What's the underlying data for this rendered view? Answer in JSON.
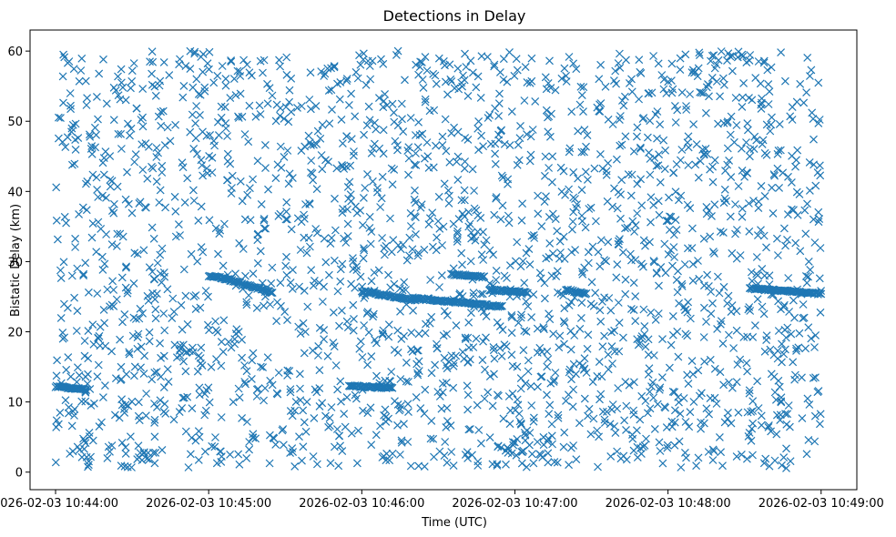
{
  "chart_data": {
    "type": "scatter",
    "title": "Detections in Delay",
    "xlabel": "Time (UTC)",
    "ylabel": "Bistatic Delay (km)",
    "marker": "x",
    "marker_color": "#1f77b4",
    "grid": false,
    "x_axis_kind": "datetime",
    "xlim": [
      "2026-02-03 10:43:50",
      "2026-02-03 10:49:14"
    ],
    "ylim": [
      -2.5,
      63
    ],
    "xticks": [
      "2026-02-03 10:44:00",
      "2026-02-03 10:45:00",
      "2026-02-03 10:46:00",
      "2026-02-03 10:47:00",
      "2026-02-03 10:48:00",
      "2026-02-03 10:49:00"
    ],
    "yticks": [
      0,
      10,
      20,
      30,
      40,
      50,
      60
    ],
    "clutter_region": {
      "x_range": [
        "2026-02-03 10:44:00",
        "2026-02-03 10:49:00"
      ],
      "y_range": [
        0.5,
        60
      ],
      "approx_count": 2400
    },
    "tracks": [
      {
        "x_start": "2026-02-03 10:44:00",
        "x_end": "2026-02-03 10:44:12",
        "y_start": 12.2,
        "y_end": 11.8
      },
      {
        "x_start": "2026-02-03 10:45:00",
        "x_end": "2026-02-03 10:45:08",
        "y_start": 28.0,
        "y_end": 27.5
      },
      {
        "x_start": "2026-02-03 10:45:08",
        "x_end": "2026-02-03 10:45:25",
        "y_start": 27.4,
        "y_end": 25.6
      },
      {
        "x_start": "2026-02-03 10:46:00",
        "x_end": "2026-02-03 10:46:20",
        "y_start": 25.8,
        "y_end": 24.5
      },
      {
        "x_start": "2026-02-03 10:46:20",
        "x_end": "2026-02-03 10:46:55",
        "y_start": 24.8,
        "y_end": 23.6
      },
      {
        "x_start": "2026-02-03 10:45:55",
        "x_end": "2026-02-03 10:46:12",
        "y_start": 12.3,
        "y_end": 12.0
      },
      {
        "x_start": "2026-02-03 10:46:35",
        "x_end": "2026-02-03 10:46:48",
        "y_start": 28.2,
        "y_end": 27.8
      },
      {
        "x_start": "2026-02-03 10:46:50",
        "x_end": "2026-02-03 10:47:05",
        "y_start": 26.0,
        "y_end": 25.6
      },
      {
        "x_start": "2026-02-03 10:47:20",
        "x_end": "2026-02-03 10:47:28",
        "y_start": 26.0,
        "y_end": 25.4
      },
      {
        "x_start": "2026-02-03 10:48:32",
        "x_end": "2026-02-03 10:49:00",
        "y_start": 26.2,
        "y_end": 25.4
      }
    ]
  }
}
